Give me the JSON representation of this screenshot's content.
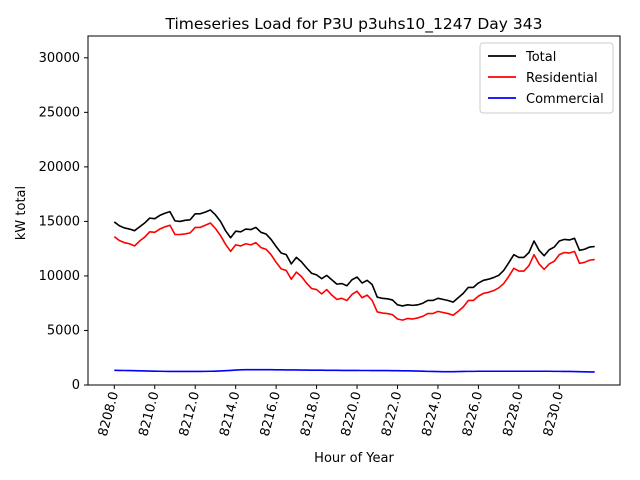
{
  "chart_data": {
    "type": "line",
    "title": "Timeseries Load for P3U p3uhs10_1247  Day 343",
    "xlabel": "Hour of Year",
    "ylabel": "kW total",
    "xlim": [
      8206.7,
      8233.0
    ],
    "ylim": [
      0,
      32000
    ],
    "xticks": [
      8208,
      8210,
      8212,
      8214,
      8216,
      8218,
      8220,
      8222,
      8224,
      8226,
      8228,
      8230
    ],
    "xtick_labels": [
      "8208.0",
      "8210.0",
      "8212.0",
      "8214.0",
      "8216.0",
      "8218.0",
      "8220.0",
      "8222.0",
      "8224.0",
      "8226.0",
      "8228.0",
      "8230.0"
    ],
    "yticks": [
      0,
      5000,
      10000,
      15000,
      20000,
      25000,
      30000
    ],
    "ytick_labels": [
      "0",
      "5000",
      "10000",
      "15000",
      "20000",
      "25000",
      "30000"
    ],
    "grid": false,
    "legend": "top-right",
    "x_start": 8208.0,
    "x_step": 0.25,
    "series": [
      {
        "name": "Total",
        "color": "#000000",
        "values": [
          14950,
          14600,
          14400,
          14300,
          14150,
          14500,
          14850,
          15300,
          15250,
          15550,
          15750,
          15900,
          15050,
          15000,
          15100,
          15150,
          15700,
          15700,
          15850,
          16050,
          15600,
          15000,
          14150,
          13500,
          14100,
          14050,
          14300,
          14250,
          14450,
          14000,
          13850,
          13350,
          12700,
          12100,
          11950,
          11100,
          11700,
          11300,
          10750,
          10250,
          10100,
          9750,
          10050,
          9650,
          9250,
          9300,
          9100,
          9650,
          9900,
          9350,
          9600,
          9200,
          8050,
          7950,
          7900,
          7800,
          7350,
          7250,
          7350,
          7300,
          7350,
          7500,
          7750,
          7750,
          7950,
          7850,
          7750,
          7600,
          8000,
          8400,
          8950,
          8950,
          9350,
          9600,
          9700,
          9850,
          10050,
          10500,
          11200,
          11950,
          11700,
          11700,
          12150,
          13200,
          12350,
          11850,
          12400,
          12650,
          13200,
          13350,
          13300,
          13450,
          12350,
          12450,
          12650,
          12700
        ]
      },
      {
        "name": "Residential",
        "color": "#ff0000",
        "values": [
          13600,
          13250,
          13050,
          12950,
          12750,
          13200,
          13550,
          14050,
          14000,
          14300,
          14500,
          14650,
          13800,
          13800,
          13850,
          13950,
          14450,
          14450,
          14650,
          14850,
          14350,
          13700,
          12900,
          12250,
          12850,
          12750,
          12950,
          12850,
          13050,
          12600,
          12450,
          11950,
          11250,
          10650,
          10500,
          9700,
          10350,
          9950,
          9350,
          8850,
          8750,
          8350,
          8750,
          8250,
          7850,
          7950,
          7750,
          8300,
          8600,
          8000,
          8250,
          7750,
          6700,
          6600,
          6550,
          6450,
          6050,
          5950,
          6100,
          6050,
          6150,
          6300,
          6550,
          6550,
          6750,
          6650,
          6550,
          6400,
          6750,
          7150,
          7750,
          7750,
          8150,
          8400,
          8500,
          8650,
          8900,
          9300,
          9950,
          10700,
          10450,
          10450,
          10950,
          11950,
          11100,
          10600,
          11100,
          11350,
          11950,
          12150,
          12100,
          12250,
          11150,
          11250,
          11450,
          11500
        ]
      },
      {
        "name": "Commercial",
        "color": "#0000ff",
        "values": [
          1350,
          1340,
          1330,
          1320,
          1310,
          1300,
          1290,
          1280,
          1270,
          1260,
          1250,
          1240,
          1240,
          1240,
          1240,
          1240,
          1240,
          1240,
          1250,
          1260,
          1270,
          1290,
          1310,
          1340,
          1370,
          1390,
          1400,
          1400,
          1400,
          1400,
          1400,
          1400,
          1390,
          1390,
          1380,
          1380,
          1380,
          1370,
          1370,
          1360,
          1360,
          1360,
          1350,
          1350,
          1350,
          1340,
          1340,
          1340,
          1340,
          1330,
          1330,
          1320,
          1320,
          1320,
          1320,
          1310,
          1310,
          1300,
          1300,
          1290,
          1280,
          1270,
          1250,
          1240,
          1230,
          1220,
          1220,
          1220,
          1230,
          1240,
          1250,
          1250,
          1260,
          1260,
          1260,
          1260,
          1260,
          1260,
          1260,
          1260,
          1260,
          1260,
          1260,
          1260,
          1260,
          1260,
          1260,
          1250,
          1250,
          1240,
          1240,
          1230,
          1220,
          1210,
          1200,
          1200
        ]
      }
    ]
  }
}
